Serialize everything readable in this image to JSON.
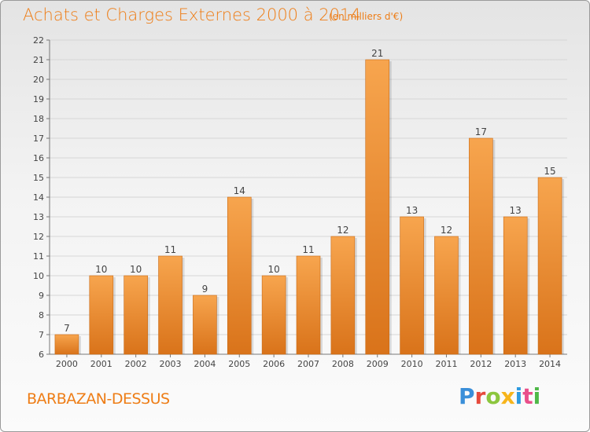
{
  "header": {
    "title": "Achats et Charges Externes 2000 à 2014",
    "subtitle": "(en milliers d'€)"
  },
  "footer": {
    "location": "BARBAZAN-DESSUS",
    "brand": "Proxiti",
    "brand_colors": [
      "#3a8fd9",
      "#e64a3c",
      "#8cc63e",
      "#f7b51c",
      "#2f9be0",
      "#e94f8a",
      "#4fb848"
    ]
  },
  "colors": {
    "bar_top": "#f7a54e",
    "bar_bottom": "#d9731a",
    "accent": "#ee7d16"
  },
  "chart_data": {
    "type": "bar",
    "categories": [
      "2000",
      "2001",
      "2002",
      "2003",
      "2004",
      "2005",
      "2006",
      "2007",
      "2008",
      "2009",
      "2010",
      "2011",
      "2012",
      "2013",
      "2014"
    ],
    "values": [
      7,
      10,
      10,
      11,
      9,
      14,
      10,
      11,
      12,
      21,
      13,
      12,
      17,
      13,
      15
    ],
    "title": "Achats et Charges Externes 2000 à 2014",
    "xlabel": "",
    "ylabel": "",
    "ylim": [
      6,
      22
    ],
    "yticks": [
      6,
      7,
      8,
      9,
      10,
      11,
      12,
      13,
      14,
      15,
      16,
      17,
      18,
      19,
      20,
      21,
      22
    ],
    "grid": "y"
  }
}
